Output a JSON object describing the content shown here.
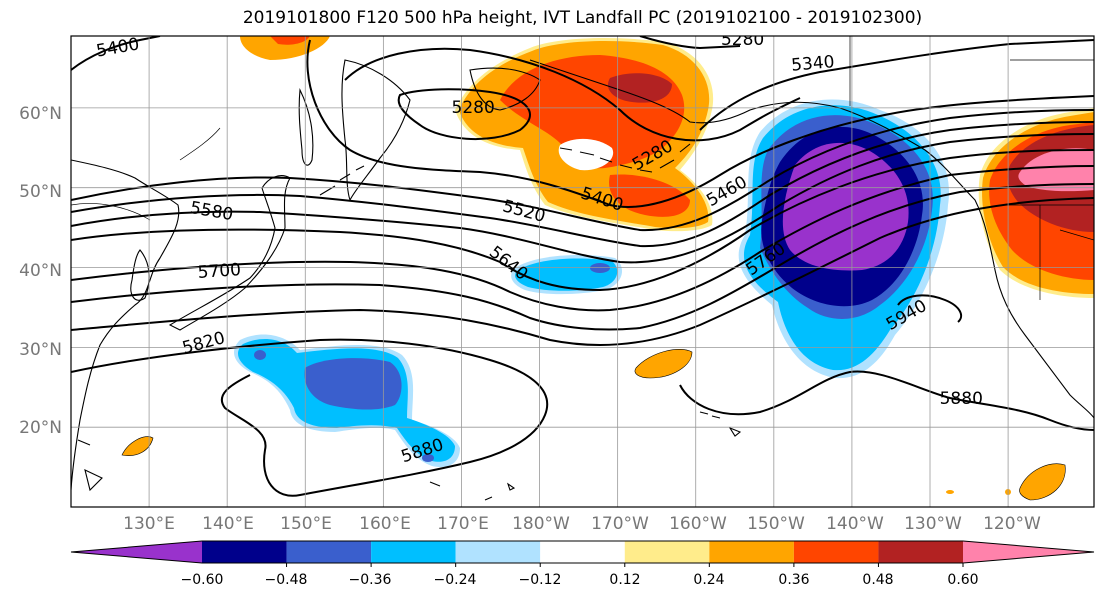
{
  "title": "2019101800 F120 500 hPa height, IVT Landfall PC (2019102100 - 2019102300)",
  "lat_ticks": [
    {
      "label": "60°N",
      "lat": 60
    },
    {
      "label": "50°N",
      "lat": 50
    },
    {
      "label": "40°N",
      "lat": 40
    },
    {
      "label": "30°N",
      "lat": 30
    },
    {
      "label": "20°N",
      "lat": 20
    }
  ],
  "lon_ticks": [
    {
      "label": "130°E",
      "lon": 130
    },
    {
      "label": "140°E",
      "lon": 140
    },
    {
      "label": "150°E",
      "lon": 150
    },
    {
      "label": "160°E",
      "lon": 160
    },
    {
      "label": "170°E",
      "lon": 170
    },
    {
      "label": "180°W",
      "lon": 180
    },
    {
      "label": "170°W",
      "lon": 190
    },
    {
      "label": "160°W",
      "lon": 200
    },
    {
      "label": "150°W",
      "lon": 210
    },
    {
      "label": "140°W",
      "lon": 220
    },
    {
      "label": "130°W",
      "lon": 230
    },
    {
      "label": "120°W",
      "lon": 240
    }
  ],
  "map_extent": {
    "lon_min": 120,
    "lon_max": 251,
    "lat_min": 10,
    "lat_max": 69
  },
  "contour_labels": [
    {
      "text": "5400",
      "lon": 126,
      "lat": 67.5,
      "angle": -10
    },
    {
      "text": "5280",
      "lon": 206,
      "lat": 68.5,
      "angle": 0
    },
    {
      "text": "5340",
      "lon": 215,
      "lat": 65.5,
      "angle": -5
    },
    {
      "text": "5280",
      "lon": 171.5,
      "lat": 60,
      "angle": 0
    },
    {
      "text": "5280",
      "lon": 194.5,
      "lat": 54,
      "angle": -30
    },
    {
      "text": "5460",
      "lon": 204,
      "lat": 49.5,
      "angle": -30
    },
    {
      "text": "5400",
      "lon": 188,
      "lat": 48.5,
      "angle": 18
    },
    {
      "text": "5520",
      "lon": 178,
      "lat": 47,
      "angle": 15
    },
    {
      "text": "5580",
      "lon": 138,
      "lat": 47,
      "angle": 10
    },
    {
      "text": "5640",
      "lon": 176,
      "lat": 40.5,
      "angle": 38
    },
    {
      "text": "5760",
      "lon": 209,
      "lat": 41,
      "angle": -35
    },
    {
      "text": "5700",
      "lon": 139,
      "lat": 39.5,
      "angle": -4
    },
    {
      "text": "5940",
      "lon": 227,
      "lat": 34,
      "angle": -30
    },
    {
      "text": "5820",
      "lon": 137,
      "lat": 30.5,
      "angle": -15
    },
    {
      "text": "5880",
      "lon": 234,
      "lat": 23.5,
      "angle": 0
    },
    {
      "text": "5880",
      "lon": 165,
      "lat": 17,
      "angle": -18
    }
  ],
  "colorbar": {
    "colors": [
      "#9932cc",
      "#00008b",
      "#3a5fcd",
      "#00bfff",
      "#b0e2ff",
      "#ffffff",
      "#ffec8b",
      "#ffa500",
      "#ff4500",
      "#b22222",
      "#ff82ab"
    ],
    "tick_labels": [
      "−0.60",
      "−0.48",
      "−0.36",
      "−0.24",
      "−0.12",
      "0.12",
      "0.24",
      "0.36",
      "0.48",
      "0.60"
    ]
  }
}
